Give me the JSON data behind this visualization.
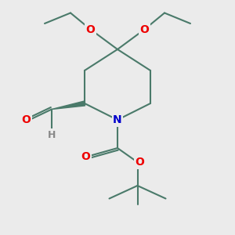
{
  "bg_color": "#ebebeb",
  "bond_color": "#4a7a6a",
  "bond_width": 1.5,
  "atom_colors": {
    "O": "#ee0000",
    "N": "#0000cc",
    "H": "#888888",
    "C": "#4a7a6a"
  },
  "font_size_atom": 10,
  "font_size_H": 9
}
